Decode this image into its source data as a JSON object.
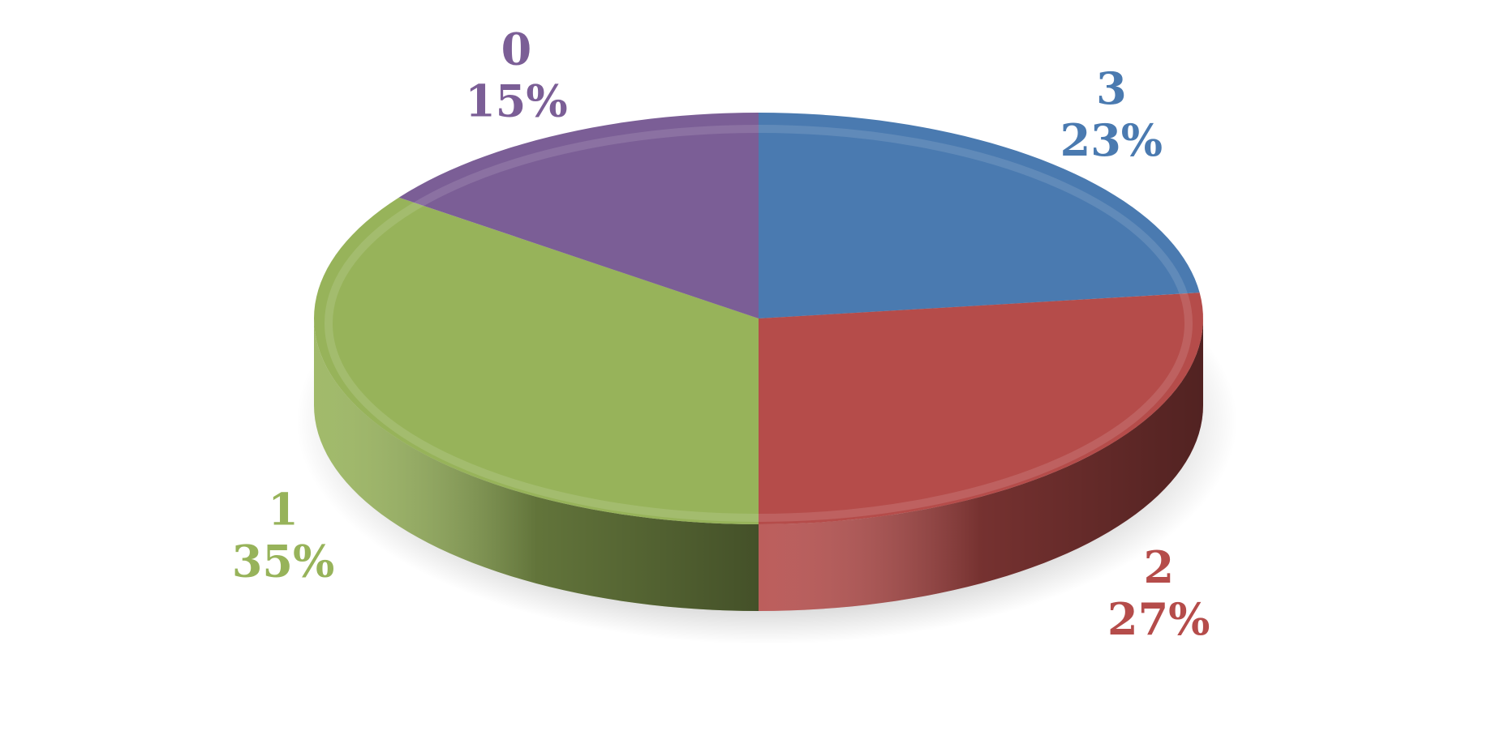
{
  "chart_data": {
    "type": "pie",
    "style": "3d",
    "title": "",
    "legend": "none",
    "slices": [
      {
        "label": "3",
        "value": 23,
        "percent_label": "23%",
        "color": "#4A7AB0"
      },
      {
        "label": "2",
        "value": 27,
        "percent_label": "27%",
        "color": "#B54C4A"
      },
      {
        "label": "1",
        "value": 35,
        "percent_label": "35%",
        "color": "#97B35A"
      },
      {
        "label": "0",
        "value": 15,
        "percent_label": "15%",
        "color": "#7B5E96"
      }
    ]
  }
}
